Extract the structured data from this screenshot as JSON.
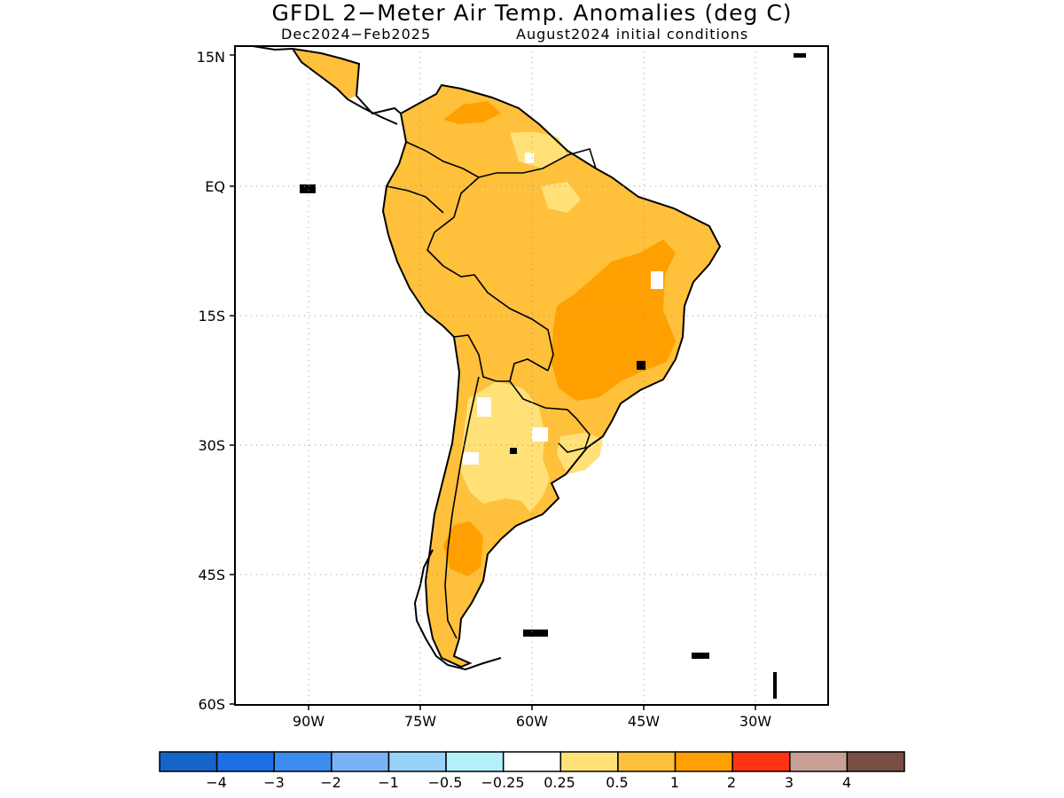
{
  "title": "GFDL 2−Meter Air Temp. Anomalies (deg C)",
  "period": "Dec2024−Feb2025",
  "initial_conditions": "August2024 initial conditions",
  "lat_ticks": [
    "15N",
    "EQ",
    "15S",
    "30S",
    "45S",
    "60S"
  ],
  "lon_ticks": [
    "90W",
    "75W",
    "60W",
    "45W",
    "30W"
  ],
  "colors": {
    "lt_-4": "#1565c8",
    "-4_-3": "#1e6ee6",
    "-3_-2": "#3c8cf0",
    "-2_-1": "#78b4f5",
    "-1_-0.5": "#96d2fa",
    "-0.5_-0.25": "#b4f0fa",
    "-0.25_0.25": "#ffffff",
    "0.25_0.5": "#ffe178",
    "0.5_1": "#ffc03c",
    "1_2": "#ffa000",
    "2_3": "#ff3214",
    "3_4": "#c8a096",
    "gt_4": "#784e44"
  },
  "colorbar": {
    "labels": [
      "−4",
      "−3",
      "−2",
      "−1",
      "−0.5",
      "−0.25",
      "0.25",
      "0.5",
      "1",
      "2",
      "3",
      "4"
    ],
    "swatches": [
      "#1565c8",
      "#1e6ee6",
      "#3c8cf0",
      "#78b4f5",
      "#96d2fa",
      "#b4f0fa",
      "#ffffff",
      "#ffe178",
      "#ffc03c",
      "#ffa000",
      "#ff3214",
      "#c8a096",
      "#784e44"
    ]
  }
}
